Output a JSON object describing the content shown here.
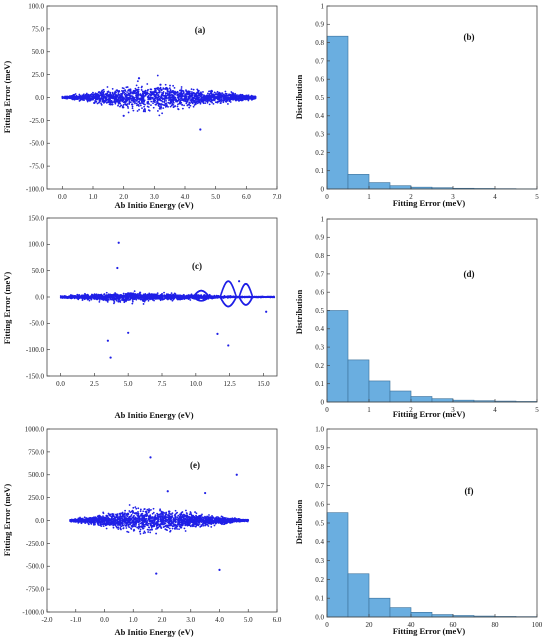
{
  "chart_data": [
    {
      "id": "a",
      "type": "scatter",
      "panel_label": "(a)",
      "xlabel": "Ab Initio Energy (eV)",
      "ylabel": "Fitting Error (meV)",
      "xlim": [
        -0.5,
        7.0
      ],
      "ylim": [
        -100,
        100
      ],
      "xticks": [
        0,
        1,
        2,
        3,
        4,
        5,
        6,
        7
      ],
      "xtick_labels": [
        "0.0",
        "1.0",
        "2.0",
        "3.0",
        "4.0",
        "5.0",
        "6.0",
        "7.0"
      ],
      "yticks": [
        -100,
        -75,
        -50,
        -25,
        0,
        25,
        50,
        75,
        100
      ],
      "ytick_labels": [
        "-100.0",
        "-75.0",
        "-50.0",
        "-25.0",
        "0.0",
        "25.0",
        "50.0",
        "75.0",
        "100.0"
      ],
      "color": "#1f1fe6",
      "cloud": {
        "x_min": 0.0,
        "x_max": 6.3,
        "spread_peak": 12,
        "peak_x": 3.0
      },
      "outliers": [
        [
          2.5,
          21
        ],
        [
          4.5,
          -35
        ],
        [
          3.2,
          14
        ],
        [
          2.0,
          -20
        ]
      ]
    },
    {
      "id": "b",
      "type": "bar",
      "panel_label": "(b)",
      "xlabel": "Fitting Error (meV)",
      "ylabel": "Distribution",
      "xlim": [
        0,
        5
      ],
      "ylim": [
        0,
        1
      ],
      "xticks": [
        0,
        1,
        2,
        3,
        4,
        5
      ],
      "xtick_labels": [
        "0",
        "1",
        "2",
        "3",
        "4",
        "5"
      ],
      "yticks": [
        0,
        0.1,
        0.2,
        0.3,
        0.4,
        0.5,
        0.6,
        0.7,
        0.8,
        0.9,
        1
      ],
      "ytick_labels": [
        "0",
        "0.1",
        "0.2",
        "0.3",
        "0.4",
        "0.5",
        "0.6",
        "0.7",
        "0.8",
        "0.9",
        "1"
      ],
      "bin_width": 0.5,
      "values": [
        0.835,
        0.08,
        0.035,
        0.018,
        0.01,
        0.007,
        0.004,
        0.003,
        0.002,
        0.001
      ],
      "color": "#6aaee0"
    },
    {
      "id": "c",
      "type": "scatter",
      "panel_label": "(c)",
      "xlabel": "Ab Initio Energy (eV)",
      "ylabel": "Fitting Error (meV)",
      "xlim": [
        -1,
        16
      ],
      "ylim": [
        -150,
        150
      ],
      "xticks": [
        0,
        2.5,
        5,
        7.5,
        10,
        12.5,
        15
      ],
      "xtick_labels": [
        "0.0",
        "2.5",
        "5.0",
        "7.5",
        "10.0",
        "12.5",
        "15.0"
      ],
      "yticks": [
        -150,
        -100,
        -50,
        0,
        50,
        100,
        150
      ],
      "ytick_labels": [
        "-150.0",
        "-100.0",
        "-50.0",
        "0.0",
        "50.0",
        "100.0",
        "150.0"
      ],
      "color": "#1f1fe6",
      "cloud": {
        "x_min": 0.0,
        "x_max": 15.8,
        "spread_peak": 8,
        "peak_x": 4.5
      },
      "outliers": [
        [
          4.3,
          103
        ],
        [
          3.7,
          -115
        ],
        [
          3.5,
          -83
        ],
        [
          4.2,
          55
        ],
        [
          12.4,
          -92
        ],
        [
          11.6,
          -70
        ],
        [
          5.0,
          -68
        ],
        [
          15.2,
          -28
        ],
        [
          13.2,
          30
        ]
      ]
    },
    {
      "id": "d",
      "type": "bar",
      "panel_label": "(d)",
      "xlabel": "Fitting Error (meV)",
      "ylabel": "Distribution",
      "xlim": [
        0,
        5
      ],
      "ylim": [
        0,
        1
      ],
      "xticks": [
        0,
        1,
        2,
        3,
        4,
        5
      ],
      "xtick_labels": [
        "0",
        "1",
        "2",
        "3",
        "4",
        "5"
      ],
      "yticks": [
        0,
        0.1,
        0.2,
        0.3,
        0.4,
        0.5,
        0.6,
        0.7,
        0.8,
        0.9,
        1
      ],
      "ytick_labels": [
        "0",
        "0.1",
        "0.2",
        "0.3",
        "0.4",
        "0.5",
        "0.6",
        "0.7",
        "0.8",
        "0.9",
        "1"
      ],
      "bin_width": 0.5,
      "values": [
        0.5,
        0.23,
        0.115,
        0.06,
        0.03,
        0.018,
        0.01,
        0.007,
        0.005,
        0.003
      ],
      "color": "#6aaee0"
    },
    {
      "id": "e",
      "type": "scatter",
      "panel_label": "(e)",
      "xlabel": "Ab Initio Energy (eV)",
      "ylabel": "Fitting Error (meV)",
      "xlim": [
        -2,
        6
      ],
      "ylim": [
        -1000,
        1000
      ],
      "xticks": [
        -2,
        -1,
        0,
        1,
        2,
        3,
        4,
        5,
        6
      ],
      "xtick_labels": [
        "-2.0",
        "-1.0",
        "0.0",
        "1.0",
        "2.0",
        "3.0",
        "4.0",
        "5.0",
        "6.0"
      ],
      "yticks": [
        -1000,
        -750,
        -500,
        -250,
        0,
        250,
        500,
        750,
        1000
      ],
      "ytick_labels": [
        "-1000.0",
        "-750.0",
        "-500.0",
        "-250.0",
        "0.0",
        "250.0",
        "500.0",
        "750.0",
        "1000.0"
      ],
      "color": "#1f1fe6",
      "cloud": {
        "x_min": -1.2,
        "x_max": 5.0,
        "spread_peak": 110,
        "peak_x": 1.5
      },
      "outliers": [
        [
          1.6,
          690
        ],
        [
          4.6,
          500
        ],
        [
          1.8,
          -580
        ],
        [
          4.0,
          -540
        ],
        [
          3.5,
          300
        ],
        [
          2.2,
          320
        ]
      ]
    },
    {
      "id": "f",
      "type": "bar",
      "panel_label": "(f)",
      "xlabel": "Fitting Error (meV)",
      "ylabel": "Distribution",
      "xlim": [
        0,
        100
      ],
      "ylim": [
        0,
        1
      ],
      "xticks": [
        0,
        20,
        40,
        60,
        80,
        100
      ],
      "xtick_labels": [
        "0",
        "20",
        "40",
        "60",
        "80",
        "100"
      ],
      "yticks": [
        0,
        0.1,
        0.2,
        0.3,
        0.4,
        0.5,
        0.6,
        0.7,
        0.8,
        0.9,
        1.0
      ],
      "ytick_labels": [
        "0.0",
        "0.1",
        "0.2",
        "0.3",
        "0.4",
        "0.5",
        "0.6",
        "0.7",
        "0.8",
        "0.9",
        "1.0"
      ],
      "bin_width": 10,
      "values": [
        0.555,
        0.23,
        0.1,
        0.05,
        0.025,
        0.013,
        0.008,
        0.005,
        0.003,
        0.002
      ],
      "color": "#6aaee0"
    }
  ]
}
